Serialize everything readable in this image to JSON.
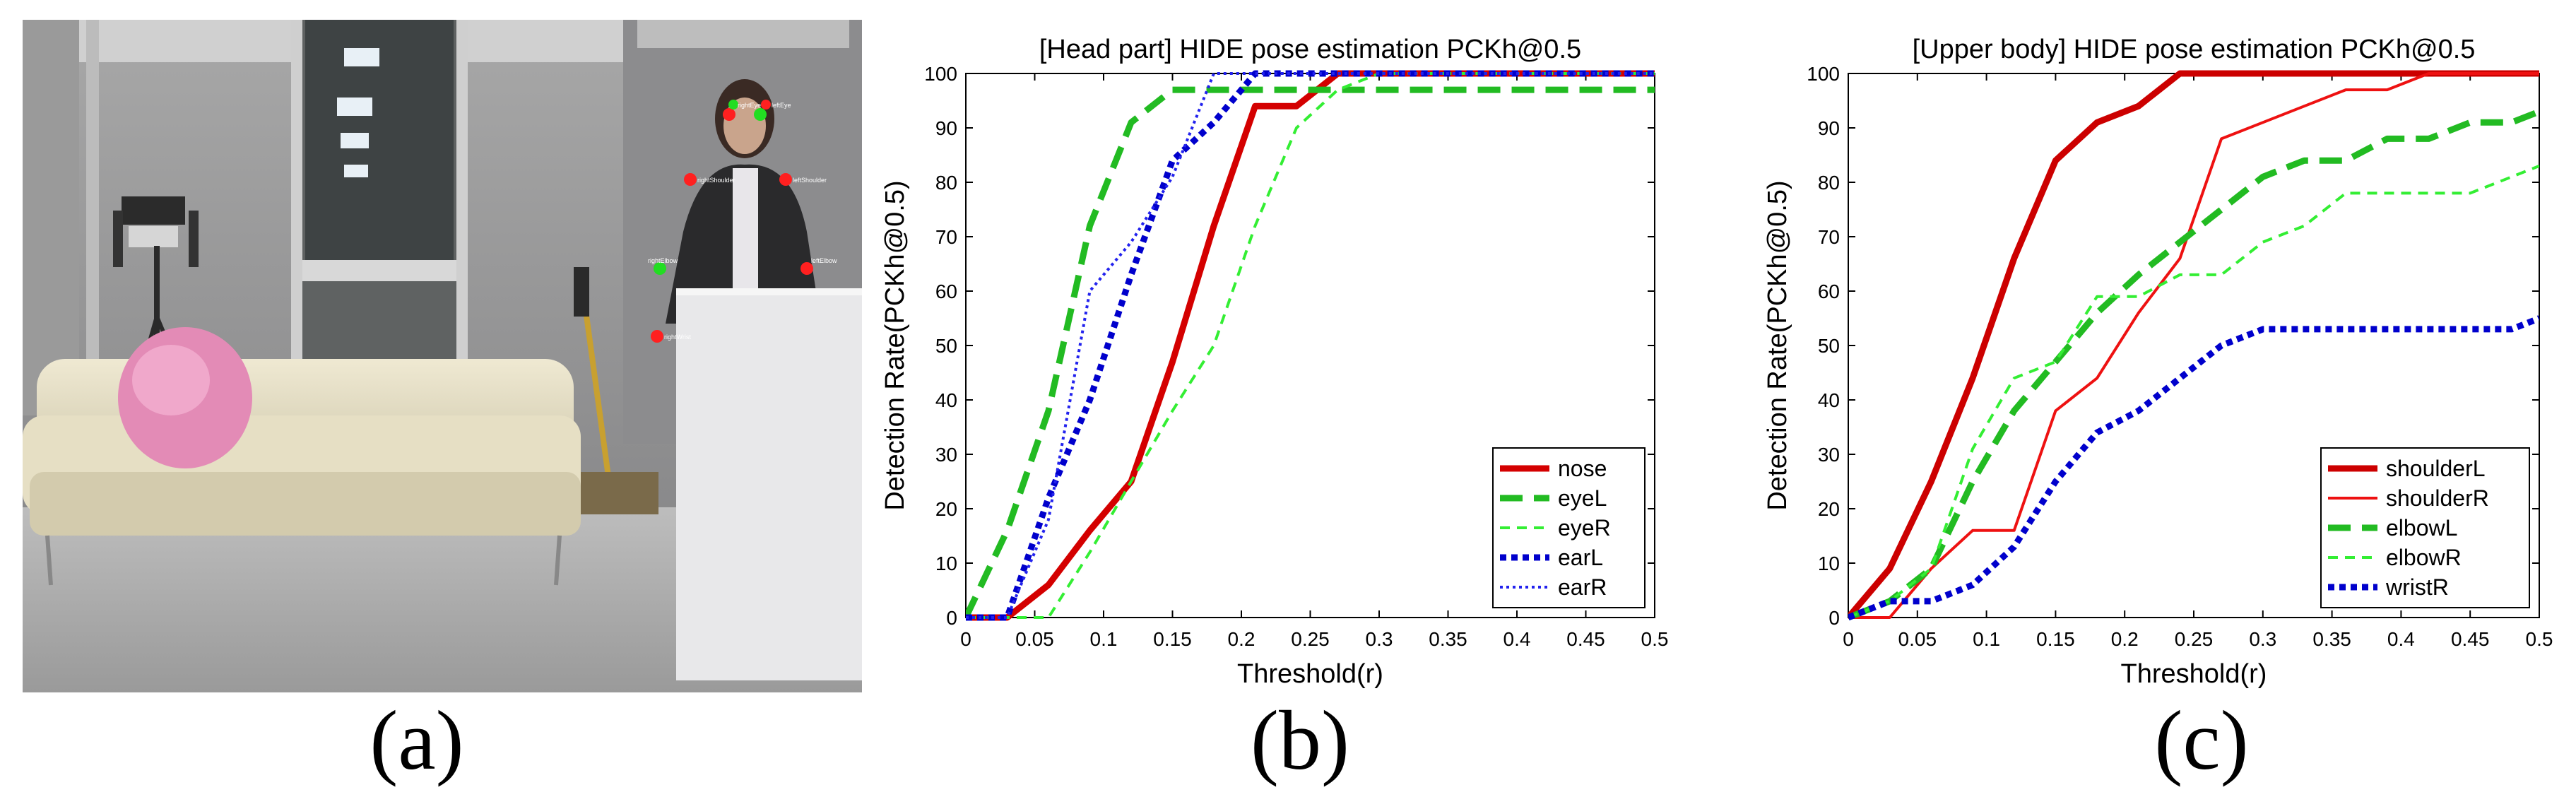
{
  "panel_labels": {
    "a": "(a)",
    "b": "(b)",
    "c": "(c)"
  },
  "photo": {
    "keypoint_labels": [
      "rightEye",
      "leftEye",
      "rightShoulder",
      "leftShoulder",
      "rightElbow",
      "leftElbow",
      "rightWrist"
    ],
    "colors": {
      "keypoint_red": "#ff2020",
      "keypoint_green": "#22dd22"
    }
  },
  "chart_data": [
    {
      "type": "line",
      "title": "[Head part] HIDE pose estimation PCKh@0.5",
      "xlabel": "Threshold(r)",
      "ylabel": "Detection Rate(PCKh@0.5)",
      "xlim": [
        0,
        0.5
      ],
      "ylim": [
        0,
        100
      ],
      "xticks": [
        0,
        0.05,
        0.1,
        0.15,
        0.2,
        0.25,
        0.3,
        0.35,
        0.4,
        0.45,
        0.5
      ],
      "yticks": [
        0,
        10,
        20,
        30,
        40,
        50,
        60,
        70,
        80,
        90,
        100
      ],
      "legend_position": "bottom-right",
      "series": [
        {
          "name": "nose",
          "color": "#d40000",
          "style": "solid-thick",
          "x": [
            0,
            0.03,
            0.06,
            0.09,
            0.12,
            0.15,
            0.18,
            0.21,
            0.24,
            0.27,
            0.3,
            0.5
          ],
          "y": [
            0,
            0,
            6,
            16,
            25,
            47,
            72,
            94,
            94,
            100,
            100,
            100
          ]
        },
        {
          "name": "eyeL",
          "color": "#22bb22",
          "style": "dashed-thick",
          "x": [
            0,
            0.03,
            0.06,
            0.09,
            0.12,
            0.15,
            0.18,
            0.21,
            0.24,
            0.27,
            0.3,
            0.5
          ],
          "y": [
            0,
            16,
            38,
            72,
            91,
            97,
            97,
            97,
            97,
            97,
            97,
            97
          ]
        },
        {
          "name": "eyeR",
          "color": "#33ee33",
          "style": "dashed-thin",
          "x": [
            0,
            0.03,
            0.06,
            0.09,
            0.12,
            0.15,
            0.18,
            0.21,
            0.24,
            0.27,
            0.3,
            0.5
          ],
          "y": [
            0,
            0,
            0,
            12,
            25,
            38,
            50,
            72,
            90,
            97,
            100,
            100
          ]
        },
        {
          "name": "earL",
          "color": "#0000cc",
          "style": "dotted-thick",
          "x": [
            0,
            0.03,
            0.06,
            0.09,
            0.12,
            0.15,
            0.18,
            0.21,
            0.24,
            0.27,
            0.3,
            0.5
          ],
          "y": [
            0,
            0,
            22,
            40,
            63,
            84,
            91,
            100,
            100,
            100,
            100,
            100
          ]
        },
        {
          "name": "earR",
          "color": "#2222ee",
          "style": "dotted-thin",
          "x": [
            0,
            0.03,
            0.06,
            0.09,
            0.12,
            0.15,
            0.18,
            0.21,
            0.24,
            0.27,
            0.3,
            0.5
          ],
          "y": [
            0,
            0,
            18,
            60,
            69,
            81,
            100,
            100,
            100,
            100,
            100,
            100
          ]
        }
      ]
    },
    {
      "type": "line",
      "title": "[Upper body] HIDE pose estimation PCKh@0.5",
      "xlabel": "Threshold(r)",
      "ylabel": "Detection Rate(PCKh@0.5)",
      "xlim": [
        0,
        0.5
      ],
      "ylim": [
        0,
        100
      ],
      "xticks": [
        0,
        0.05,
        0.1,
        0.15,
        0.2,
        0.25,
        0.3,
        0.35,
        0.4,
        0.45,
        0.5
      ],
      "yticks": [
        0,
        10,
        20,
        30,
        40,
        50,
        60,
        70,
        80,
        90,
        100
      ],
      "legend_position": "bottom-right",
      "series": [
        {
          "name": "shoulderL",
          "color": "#cc0000",
          "style": "solid-thick",
          "x": [
            0,
            0.03,
            0.06,
            0.09,
            0.12,
            0.15,
            0.18,
            0.21,
            0.24,
            0.27,
            0.3,
            0.36,
            0.42,
            0.48,
            0.5
          ],
          "y": [
            0,
            9,
            25,
            44,
            66,
            84,
            91,
            94,
            100,
            100,
            100,
            100,
            100,
            100,
            100
          ]
        },
        {
          "name": "shoulderR",
          "color": "#ee1111",
          "style": "solid-thin",
          "x": [
            0,
            0.03,
            0.06,
            0.09,
            0.12,
            0.15,
            0.18,
            0.21,
            0.24,
            0.27,
            0.3,
            0.33,
            0.36,
            0.39,
            0.42,
            0.45,
            0.5
          ],
          "y": [
            0,
            0,
            9,
            16,
            16,
            38,
            44,
            56,
            66,
            88,
            91,
            94,
            97,
            97,
            100,
            100,
            100
          ]
        },
        {
          "name": "elbowL",
          "color": "#22bb22",
          "style": "dashed-thick",
          "x": [
            0,
            0.03,
            0.06,
            0.09,
            0.12,
            0.15,
            0.18,
            0.21,
            0.24,
            0.27,
            0.3,
            0.33,
            0.36,
            0.39,
            0.42,
            0.45,
            0.48,
            0.5
          ],
          "y": [
            0,
            3,
            9,
            25,
            38,
            47,
            56,
            63,
            69,
            75,
            81,
            84,
            84,
            88,
            88,
            91,
            91,
            93
          ]
        },
        {
          "name": "elbowR",
          "color": "#33ee33",
          "style": "dashed-thin",
          "x": [
            0,
            0.03,
            0.06,
            0.09,
            0.12,
            0.15,
            0.18,
            0.21,
            0.24,
            0.27,
            0.3,
            0.33,
            0.36,
            0.39,
            0.42,
            0.45,
            0.48,
            0.5
          ],
          "y": [
            0,
            3,
            9,
            31,
            44,
            47,
            59,
            59,
            63,
            63,
            69,
            72,
            78,
            78,
            78,
            78,
            81,
            83
          ]
        },
        {
          "name": "wristR",
          "color": "#0000cc",
          "style": "dotted-thick",
          "x": [
            0,
            0.03,
            0.06,
            0.09,
            0.12,
            0.15,
            0.18,
            0.21,
            0.24,
            0.27,
            0.3,
            0.33,
            0.36,
            0.39,
            0.42,
            0.45,
            0.48,
            0.5
          ],
          "y": [
            0,
            3,
            3,
            6,
            13,
            25,
            34,
            38,
            44,
            50,
            53,
            53,
            53,
            53,
            53,
            53,
            53,
            55
          ]
        }
      ]
    }
  ]
}
